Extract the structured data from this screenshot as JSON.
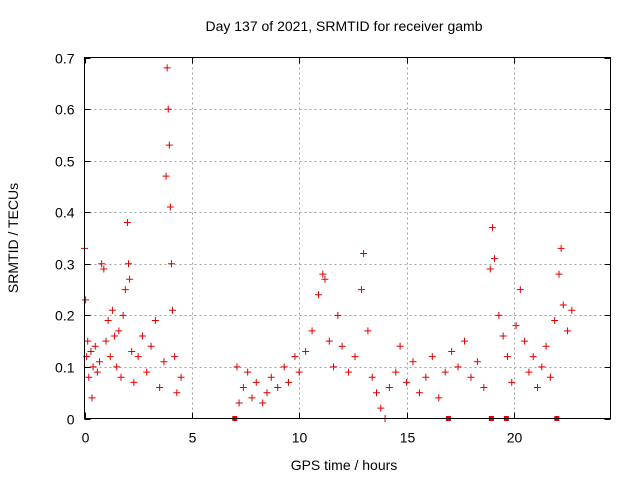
{
  "chart_data": {
    "type": "scatter",
    "title": "Day 137 of 2021, SRMTID for receiver gamb",
    "xlabel": "GPS time / hours",
    "ylabel": "SRMTID / TECUs",
    "xlim": [
      0,
      24.5
    ],
    "ylim": [
      0,
      0.7
    ],
    "xticks": [
      0,
      5,
      10,
      15,
      20
    ],
    "xtick_labels": [
      "0",
      "5",
      "10",
      "15",
      "20"
    ],
    "yticks": [
      0,
      0.1,
      0.2,
      0.3,
      0.4,
      0.5,
      0.6,
      0.7
    ],
    "ytick_labels": [
      "0",
      "0.1",
      "0.2",
      "0.3",
      "0.4",
      "0.5",
      "0.6",
      "0.7"
    ],
    "grid": true,
    "marker": "+",
    "color": "#e00000",
    "series": [
      {
        "name": "SRMTID",
        "points": [
          [
            0.0,
            0.33
          ],
          [
            0.05,
            0.23
          ],
          [
            0.1,
            0.12
          ],
          [
            0.15,
            0.15
          ],
          [
            0.2,
            0.08
          ],
          [
            0.3,
            0.13
          ],
          [
            0.35,
            0.04
          ],
          [
            0.4,
            0.1
          ],
          [
            0.5,
            0.14
          ],
          [
            0.6,
            0.09
          ],
          [
            0.7,
            0.11
          ],
          [
            0.8,
            0.3
          ],
          [
            0.9,
            0.29
          ],
          [
            1.0,
            0.15
          ],
          [
            1.1,
            0.19
          ],
          [
            1.2,
            0.12
          ],
          [
            1.3,
            0.21
          ],
          [
            1.4,
            0.16
          ],
          [
            1.5,
            0.1
          ],
          [
            1.6,
            0.17
          ],
          [
            1.7,
            0.08
          ],
          [
            1.8,
            0.2
          ],
          [
            1.9,
            0.25
          ],
          [
            2.0,
            0.38
          ],
          [
            2.05,
            0.3
          ],
          [
            2.1,
            0.27
          ],
          [
            2.2,
            0.13
          ],
          [
            2.3,
            0.07
          ],
          [
            2.5,
            0.12
          ],
          [
            2.7,
            0.16
          ],
          [
            2.9,
            0.09
          ],
          [
            3.1,
            0.14
          ],
          [
            3.3,
            0.19
          ],
          [
            3.5,
            0.06
          ],
          [
            3.7,
            0.11
          ],
          [
            3.8,
            0.47
          ],
          [
            3.85,
            0.68
          ],
          [
            3.9,
            0.6
          ],
          [
            3.95,
            0.53
          ],
          [
            4.0,
            0.41
          ],
          [
            4.05,
            0.3
          ],
          [
            4.1,
            0.21
          ],
          [
            4.2,
            0.12
          ],
          [
            4.3,
            0.05
          ],
          [
            4.5,
            0.08
          ],
          [
            7.1,
            0.1
          ],
          [
            7.2,
            0.03
          ],
          [
            7.4,
            0.06
          ],
          [
            7.6,
            0.09
          ],
          [
            7.8,
            0.04
          ],
          [
            8.0,
            0.07
          ],
          [
            8.3,
            0.03
          ],
          [
            8.5,
            0.05
          ],
          [
            8.7,
            0.08
          ],
          [
            9.0,
            0.06
          ],
          [
            9.3,
            0.1
          ],
          [
            9.5,
            0.07
          ],
          [
            9.8,
            0.12
          ],
          [
            10.0,
            0.09
          ],
          [
            10.3,
            0.13
          ],
          [
            10.6,
            0.17
          ],
          [
            10.9,
            0.24
          ],
          [
            11.1,
            0.28
          ],
          [
            11.2,
            0.27
          ],
          [
            11.4,
            0.15
          ],
          [
            11.6,
            0.1
          ],
          [
            11.8,
            0.2
          ],
          [
            12.0,
            0.14
          ],
          [
            12.3,
            0.09
          ],
          [
            12.6,
            0.12
          ],
          [
            12.9,
            0.25
          ],
          [
            13.0,
            0.32
          ],
          [
            13.2,
            0.17
          ],
          [
            13.4,
            0.08
          ],
          [
            13.6,
            0.05
          ],
          [
            13.8,
            0.02
          ],
          [
            14.0,
            0.0
          ],
          [
            14.2,
            0.06
          ],
          [
            14.5,
            0.09
          ],
          [
            14.7,
            0.14
          ],
          [
            15.0,
            0.07
          ],
          [
            15.3,
            0.11
          ],
          [
            15.6,
            0.05
          ],
          [
            15.9,
            0.08
          ],
          [
            16.2,
            0.12
          ],
          [
            16.5,
            0.04
          ],
          [
            16.8,
            0.09
          ],
          [
            17.1,
            0.13
          ],
          [
            17.4,
            0.1
          ],
          [
            17.7,
            0.15
          ],
          [
            18.0,
            0.08
          ],
          [
            18.3,
            0.11
          ],
          [
            18.6,
            0.06
          ],
          [
            18.9,
            0.29
          ],
          [
            19.0,
            0.37
          ],
          [
            19.1,
            0.31
          ],
          [
            19.3,
            0.2
          ],
          [
            19.5,
            0.16
          ],
          [
            19.7,
            0.12
          ],
          [
            19.9,
            0.07
          ],
          [
            20.1,
            0.18
          ],
          [
            20.3,
            0.25
          ],
          [
            20.5,
            0.15
          ],
          [
            20.7,
            0.09
          ],
          [
            20.9,
            0.12
          ],
          [
            21.1,
            0.06
          ],
          [
            21.3,
            0.1
          ],
          [
            21.5,
            0.14
          ],
          [
            21.7,
            0.08
          ],
          [
            21.9,
            0.19
          ],
          [
            22.1,
            0.28
          ],
          [
            22.2,
            0.33
          ],
          [
            22.3,
            0.22
          ],
          [
            22.5,
            0.17
          ],
          [
            22.7,
            0.21
          ]
        ]
      }
    ],
    "gap_markers_x": [
      7.0,
      16.95,
      18.95,
      19.65,
      22.0
    ]
  }
}
